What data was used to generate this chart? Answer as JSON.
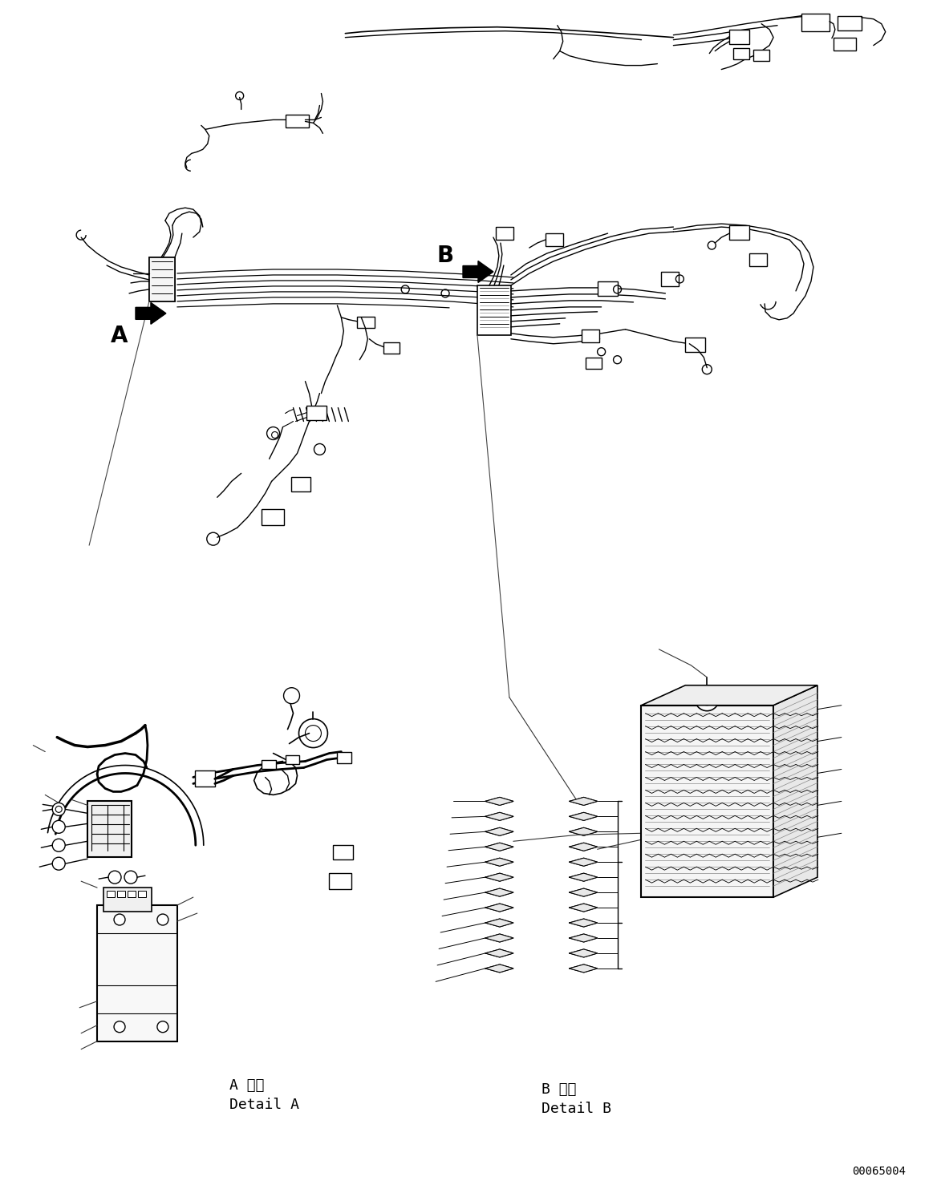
{
  "bg_color": "#ffffff",
  "line_color": "#000000",
  "line_width": 1.0,
  "fig_width": 11.63,
  "fig_height": 14.88,
  "label_A": "A",
  "label_B": "B",
  "detail_A_japanese": "A 詳細",
  "detail_A_english": "Detail A",
  "detail_B_japanese": "B 詳細",
  "detail_B_english": "Detail B",
  "part_number": "00065004",
  "font_size_label": 20,
  "font_size_detail": 13,
  "font_size_part": 10
}
